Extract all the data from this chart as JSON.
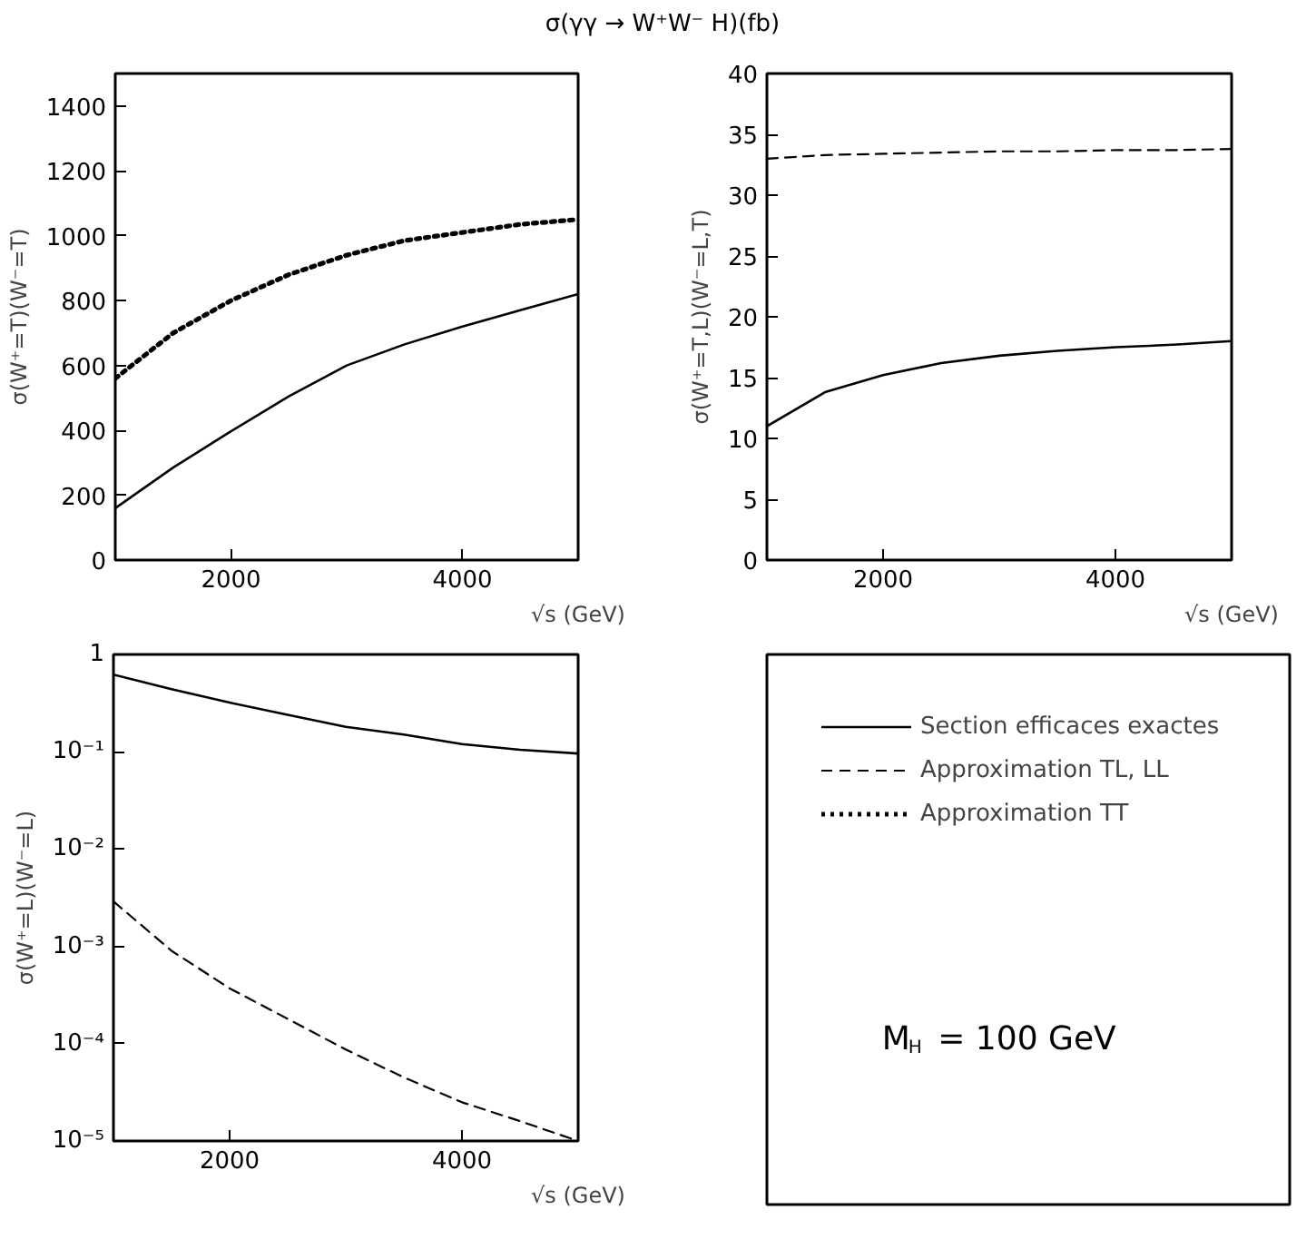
{
  "chart_data": [
    {
      "type": "line",
      "title": "σ(γγ → W⁺W⁻ H)(fb)",
      "xlabel": "√s (GeV)",
      "ylabel": "σ(W⁺=T)(W⁻=T)",
      "x": [
        1000,
        1500,
        2000,
        2500,
        3000,
        3500,
        4000,
        4500,
        5000
      ],
      "xlim": [
        1000,
        5000
      ],
      "xticks": [
        2000,
        4000
      ],
      "ylim": [
        0,
        1500
      ],
      "yticks": [
        0,
        200,
        400,
        600,
        800,
        1000,
        1200,
        1400
      ],
      "grid": false,
      "series": [
        {
          "color": "#000000",
          "line_style": "solid",
          "values": [
            160,
            285,
            397,
            505,
            600,
            665,
            720,
            770,
            820
          ]
        },
        {
          "color": "#000000",
          "line_style": "dotted",
          "values": [
            560,
            700,
            800,
            880,
            940,
            985,
            1010,
            1035,
            1050
          ]
        }
      ]
    },
    {
      "type": "line",
      "xlabel": "√s (GeV)",
      "ylabel": "σ(W⁺=T,L)(W⁻=L,T)",
      "x": [
        1000,
        1500,
        2000,
        2500,
        3000,
        3500,
        4000,
        4500,
        5000
      ],
      "xlim": [
        1000,
        5000
      ],
      "xticks": [
        2000,
        4000
      ],
      "ylim": [
        0,
        40
      ],
      "yticks": [
        0,
        5,
        10,
        15,
        20,
        25,
        30,
        35,
        40
      ],
      "grid": false,
      "series": [
        {
          "color": "#000000",
          "line_style": "solid",
          "values": [
            11,
            13.8,
            15.2,
            16.2,
            16.8,
            17.2,
            17.5,
            17.7,
            18.0
          ]
        },
        {
          "color": "#000000",
          "line_style": "dashed",
          "values": [
            33,
            33.3,
            33.4,
            33.5,
            33.6,
            33.6,
            33.7,
            33.7,
            33.8
          ]
        }
      ]
    },
    {
      "type": "line",
      "xlabel": "√s (GeV)",
      "ylabel": "σ(W⁺=L)(W⁻=L)",
      "x": [
        1000,
        1500,
        2000,
        2500,
        3000,
        3500,
        4000,
        4500,
        5000
      ],
      "xlim": [
        1000,
        5000
      ],
      "xticks": [
        2000,
        4000
      ],
      "ylim": [
        1e-05,
        1
      ],
      "log": "y",
      "yticks": [
        1,
        {
          "value": 0.1,
          "label": "10⁻¹"
        },
        {
          "value": 0.01,
          "label": "10⁻²"
        },
        {
          "value": 0.001,
          "label": "10⁻³"
        },
        {
          "value": 0.0001,
          "label": "10⁻⁴"
        },
        {
          "value": 1e-05,
          "label": "10⁻⁵"
        }
      ],
      "grid": false,
      "series": [
        {
          "color": "#000000",
          "line_style": "solid",
          "values": [
            0.62,
            0.44,
            0.32,
            0.24,
            0.18,
            0.15,
            0.12,
            0.105,
            0.096
          ]
        },
        {
          "color": "#000000",
          "line_style": "dashed",
          "values": [
            0.0029,
            0.0009,
            0.00037,
            0.00018,
            8.7e-05,
            4.5e-05,
            2.5e-05,
            1.6e-05,
            1e-05
          ]
        }
      ]
    },
    {
      "type": "other",
      "legend": "top left",
      "annotations": [
        "M$_{H}$ = 100 GeV"
      ],
      "series": [
        {
          "type": "line",
          "name": "Section efficaces exactes",
          "color": "#000000",
          "line_style": "solid"
        },
        {
          "type": "line",
          "name": "Approximation TL, LL",
          "color": "#000000",
          "line_style": "dashed"
        },
        {
          "type": "line",
          "name": "Approximation TT",
          "color": "#000000",
          "line_style": "dotted"
        }
      ]
    }
  ]
}
